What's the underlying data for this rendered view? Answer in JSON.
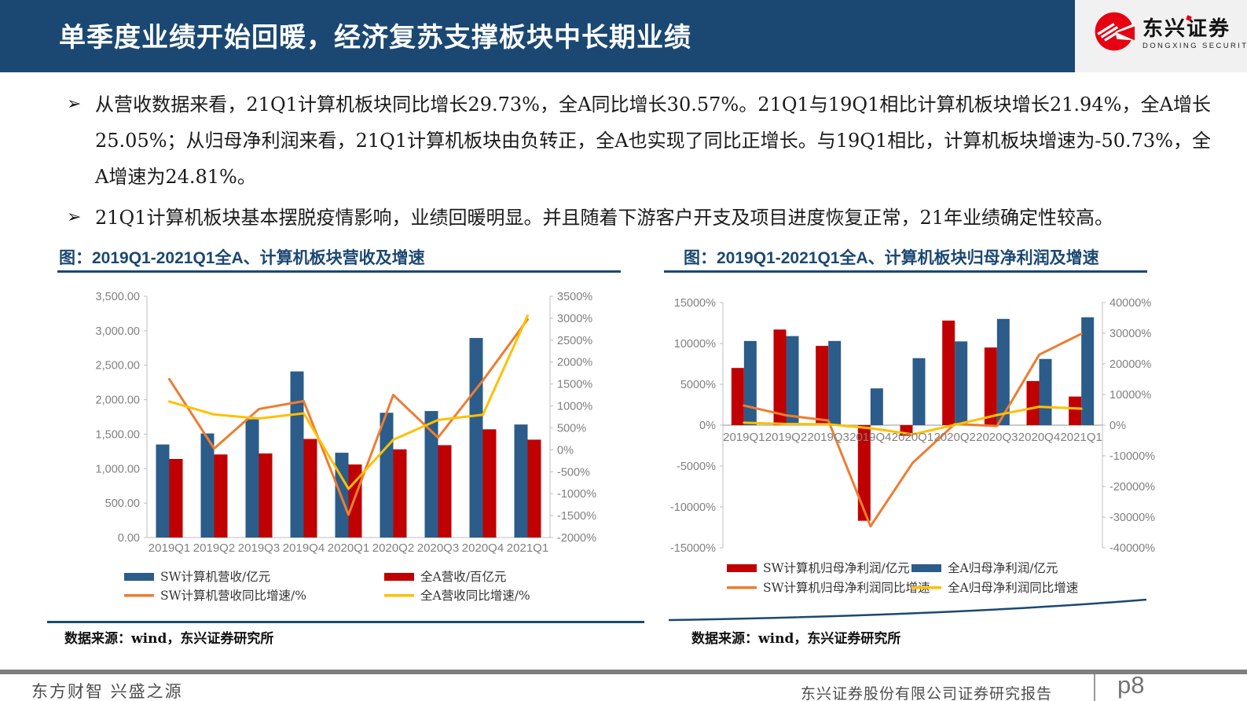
{
  "header": {
    "title": "单季度业绩开始回暖，经济复苏支撑板块中长期业绩",
    "logo": {
      "brand_cn": "东兴证券",
      "brand_en": "DONGXING SECURITIES"
    }
  },
  "bullet_marker": "➢",
  "bullets": [
    "从营收数据来看，21Q1计算机板块同比增长29.73%，全A同比增长30.57%。21Q1与19Q1相比计算机板块增长21.94%，全A增长25.05%；从归母净利润来看，21Q1计算机板块由负转正，全A也实现了同比正增长。与19Q1相比，计算机板块增速为-50.73%，全A增速为24.81%。",
    "21Q1计算机板块基本摆脱疫情影响，业绩回暖明显。并且随着下游客户开支及项目进度恢复正常，21年业绩确定性较高。"
  ],
  "colors": {
    "navy": "#1B4872",
    "bar_blue": "#2B5C8A",
    "bar_red": "#C00000",
    "line_orange": "#ED7D31",
    "line_yellow": "#FFC000",
    "axis_gray": "#808080",
    "brand_red": "#E60012"
  },
  "chart_data": [
    {
      "type": "combo-bar-line",
      "title": "图：2019Q1-2021Q1全A、计算机板块营收及增速",
      "source": "数据来源：wind，东兴证券研究所",
      "categories": [
        "2019Q1",
        "2019Q2",
        "2019Q3",
        "2019Q4",
        "2020Q1",
        "2020Q2",
        "2020Q3",
        "2020Q4",
        "2021Q1"
      ],
      "bar_series": [
        {
          "name": "SW计算机营收/亿元",
          "color": "#2B5C8A",
          "axis": "left",
          "values": [
            1350,
            1510,
            1715,
            2410,
            1230,
            1810,
            1835,
            2895,
            1640
          ]
        },
        {
          "name": "全A营收/百亿元",
          "color": "#C00000",
          "axis": "left",
          "values": [
            1140,
            1205,
            1220,
            1430,
            1060,
            1280,
            1340,
            1570,
            1420
          ]
        }
      ],
      "line_series": [
        {
          "name": "SW计算机营收同比增速/%",
          "color": "#ED7D31",
          "axis": "right",
          "values": [
            1610,
            30,
            930,
            1110,
            -1480,
            1250,
            280,
            1580,
            2973
          ]
        },
        {
          "name": "全A营收同比增速/%",
          "color": "#FFC000",
          "axis": "right",
          "values": [
            1100,
            805,
            715,
            830,
            -890,
            230,
            680,
            800,
            3057
          ]
        }
      ],
      "left_axis": {
        "min": 0,
        "max": 3500,
        "step": 500,
        "format": "number2"
      },
      "right_axis": {
        "min": -2000,
        "max": 3500,
        "step": 500,
        "format": "percent"
      },
      "legend_position": "bottom",
      "gridlines": false,
      "xlabel": "",
      "ylabel": ""
    },
    {
      "type": "combo-bar-line",
      "title": "图：2019Q1-2021Q1全A、计算机板块归母净利润及增速",
      "source": "数据来源：wind，东兴证券研究所",
      "categories": [
        "2019Q1",
        "2019Q2",
        "2019Q3",
        "2019Q4",
        "2020Q1",
        "2020Q2",
        "2020Q3",
        "2020Q4",
        "2021Q1"
      ],
      "bar_series": [
        {
          "name": "SW计算机归母净利润/亿元",
          "color": "#C00000",
          "axis": "left",
          "values": [
            7000,
            11700,
            9700,
            -11700,
            -1300,
            12800,
            9500,
            5400,
            3500
          ]
        },
        {
          "name": "全A归母净利润/亿元",
          "color": "#2B5C8A",
          "axis": "left",
          "values": [
            10300,
            10900,
            10300,
            4500,
            8200,
            10250,
            13000,
            8100,
            13200
          ]
        }
      ],
      "line_series": [
        {
          "name": "SW计算机归母净利润同比增速",
          "color": "#ED7D31",
          "axis": "right",
          "values": [
            6400,
            3200,
            1500,
            -33000,
            -12300,
            400,
            -300,
            23000,
            29800
          ]
        },
        {
          "name": "全A归母净利润同比增速",
          "color": "#FFC000",
          "axis": "right",
          "values": [
            800,
            400,
            300,
            -1000,
            -3000,
            100,
            3300,
            6000,
            5400
          ]
        }
      ],
      "left_axis": {
        "min": -15000,
        "max": 15000,
        "step": 5000,
        "format": "percent"
      },
      "right_axis": {
        "min": -40000,
        "max": 40000,
        "step": 10000,
        "format": "percent"
      },
      "legend_position": "bottom",
      "gridlines": false,
      "xlabel": "",
      "ylabel": ""
    }
  ],
  "footer": {
    "slogan": "东方财智 兴盛之源",
    "report_label": "东兴证券股份有限公司证券研究报告",
    "page": "p8"
  }
}
